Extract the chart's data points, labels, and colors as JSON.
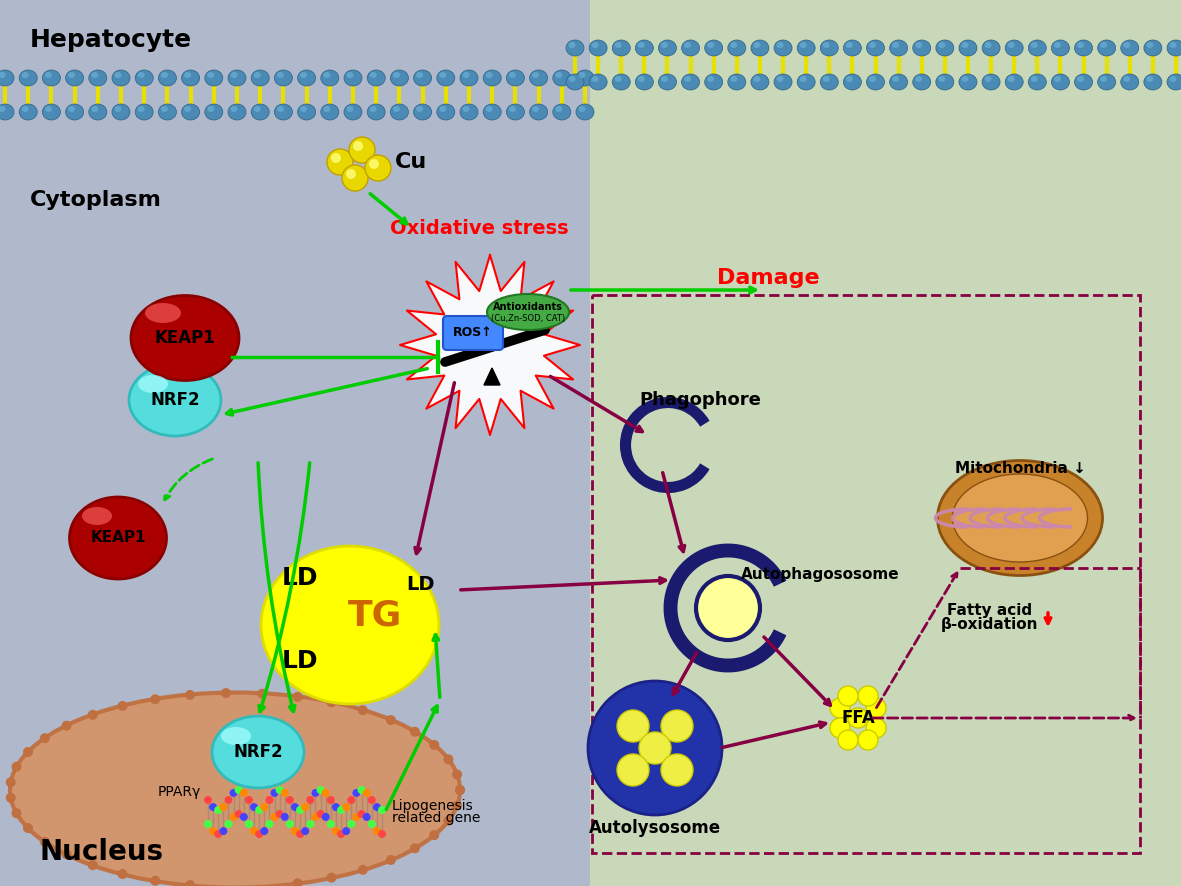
{
  "bg_left_color": "#b0b8cc",
  "bg_right_color": "#c8d8b8",
  "membrane_color": "#4a8ab5",
  "membrane_highlight": "#6ab0d5",
  "fatty_color": "#e8e000",
  "title_hepatocyte": "Hepatocyte",
  "title_cytoplasm": "Cytoplasm",
  "title_nucleus": "Nucleus",
  "label_cu": "Cu",
  "label_oxidative": "Oxidative stress",
  "label_damage": "Damage",
  "label_keap1": "KEAP1",
  "label_nrf2": "NRF2",
  "label_ros": "ROS↑",
  "label_antioxidants_1": "Antioxidants",
  "label_antioxidants_2": "(Cu,Zn-SOD, CAT)",
  "label_phagophore": "Phagophore",
  "label_autophagosome": "Autophagososome",
  "label_autolysosome": "Autolysosome",
  "label_ffa": "FFA",
  "label_ld": "LD",
  "label_tg": "TG",
  "label_mitochondria": "Mitochondria ↓",
  "label_fatty_acid_1": "Fatty acid",
  "label_fatty_acid_2": "β-oxidation",
  "label_ppar": "PPARγ",
  "label_lipogenesis_1": "Lipogenesis",
  "label_lipogenesis_2": "related gene",
  "green_arrow": "#00cc00",
  "red_color": "#ff0000",
  "purple_arrow": "#880044",
  "dark_blue": "#1a1a6e",
  "nucleus_color": "#d4956a",
  "nucleus_border": "#c07040",
  "keap1_color": "#aa0000",
  "keap1_hl": "#ff6666",
  "nrf2_color": "#55dddd",
  "nrf2_hl": "#aaffff",
  "mito_outer": "#c8832a",
  "mito_inner": "#e0a050",
  "mito_crista": "#cc88aa"
}
